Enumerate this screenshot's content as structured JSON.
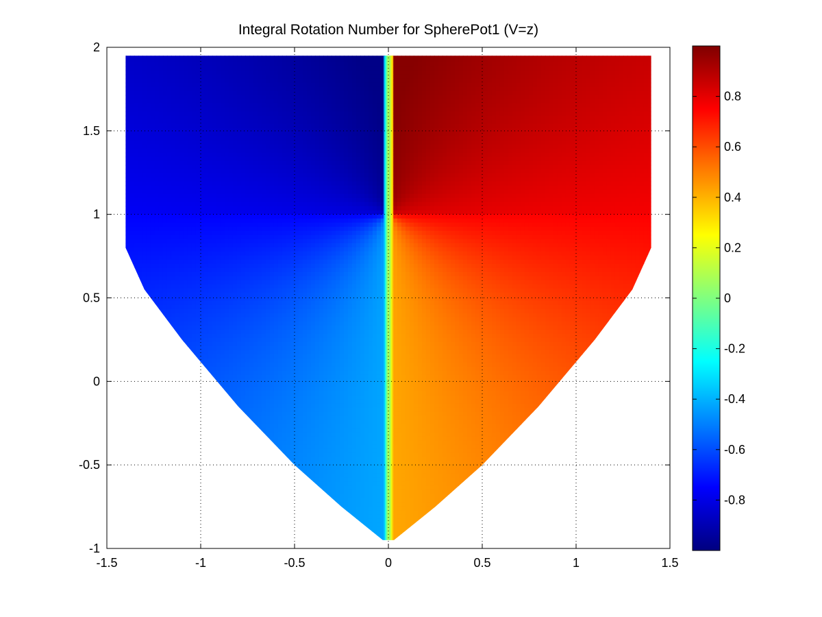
{
  "chart_data": {
    "type": "heatmap",
    "title": "Integral Rotation Number for SpherePot1 (V=z)",
    "xlabel": "",
    "ylabel": "",
    "xlim": [
      -1.5,
      1.5
    ],
    "ylim": [
      -1,
      2
    ],
    "xticks": [
      "-1.5",
      "-1",
      "-0.5",
      "0",
      "0.5",
      "1",
      "1.5"
    ],
    "yticks": [
      "-1",
      "-0.5",
      "0",
      "0.5",
      "1",
      "1.5",
      "2"
    ],
    "grid": true,
    "colormap": "jet",
    "clim": [
      -1,
      1
    ],
    "colorbar": {
      "location": "right",
      "ticks": [
        "-0.8",
        "-0.6",
        "-0.4",
        "-0.2",
        "0",
        "0.2",
        "0.4",
        "0.6",
        "0.8"
      ]
    },
    "region": {
      "boundary": [
        [
          -1.4,
          1.95
        ],
        [
          1.4,
          1.95
        ],
        [
          1.4,
          0.8
        ],
        [
          1.3,
          0.55
        ],
        [
          1.1,
          0.25
        ],
        [
          0.8,
          -0.15
        ],
        [
          0.5,
          -0.5
        ],
        [
          0.25,
          -0.75
        ],
        [
          0.03,
          -0.95
        ],
        [
          -0.03,
          -0.95
        ],
        [
          -0.25,
          -0.75
        ],
        [
          -0.5,
          -0.5
        ],
        [
          -0.8,
          -0.15
        ],
        [
          -1.1,
          0.25
        ],
        [
          -1.3,
          0.55
        ],
        [
          -1.4,
          0.8
        ]
      ],
      "left_half_values": {
        "top": -0.97,
        "center_at_y1": -0.75,
        "bottom": -0.42
      },
      "right_half_values": {
        "top": 0.97,
        "center_at_y1": 0.75,
        "bottom": 0.42
      },
      "discontinuity_x": 0,
      "singular_point": [
        0,
        1
      ]
    }
  }
}
